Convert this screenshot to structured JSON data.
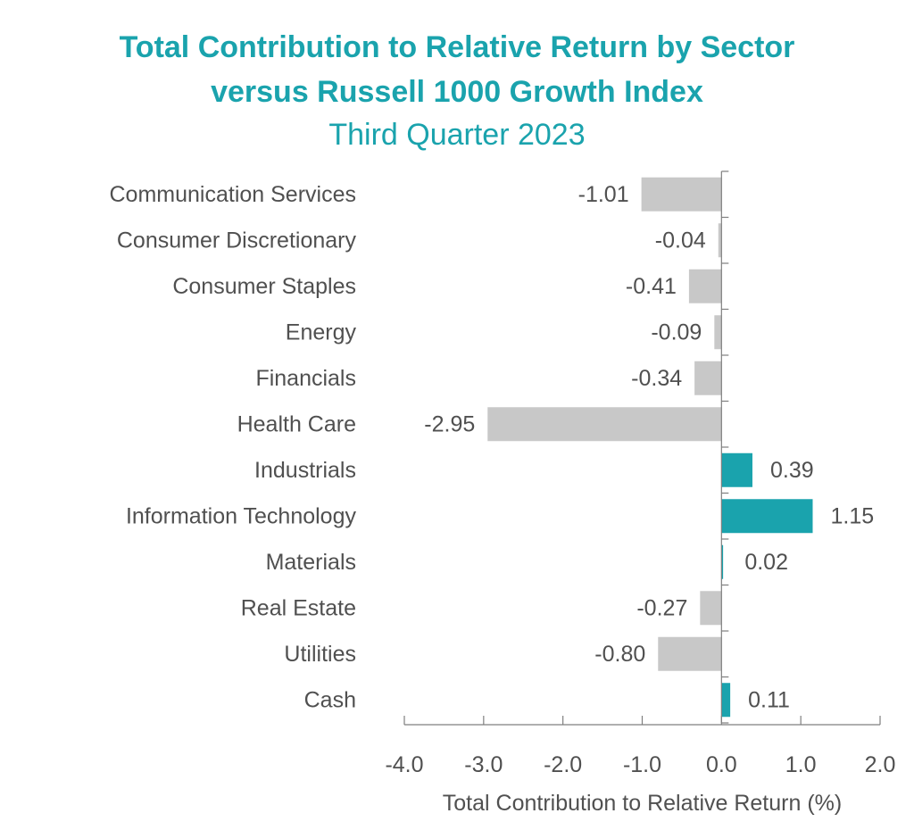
{
  "chart_data": {
    "type": "bar",
    "orientation": "horizontal",
    "title_lines": [
      "Total Contribution to Relative Return by Sector",
      "versus Russell 1000 Growth Index",
      "Third Quarter 2023"
    ],
    "categories": [
      "Communication Services",
      "Consumer Discretionary",
      "Consumer Staples",
      "Energy",
      "Financials",
      "Health Care",
      "Industrials",
      "Information Technology",
      "Materials",
      "Real Estate",
      "Utilities",
      "Cash"
    ],
    "values": [
      -1.01,
      -0.04,
      -0.41,
      -0.09,
      -0.34,
      -2.95,
      0.39,
      1.15,
      0.02,
      -0.27,
      -0.8,
      0.11
    ],
    "value_labels": [
      "-1.01",
      "-0.04",
      "-0.41",
      "-0.09",
      "-0.34",
      "-2.95",
      "0.39",
      "1.15",
      "0.02",
      "-0.27",
      "-0.80",
      "0.11"
    ],
    "xlabel": "Total Contribution to Relative Return (%)",
    "ylabel": "",
    "xlim": [
      -4.0,
      2.0
    ],
    "x_ticks": [
      -4.0,
      -3.0,
      -2.0,
      -1.0,
      0.0,
      1.0,
      2.0
    ],
    "x_tick_labels": [
      "-4.0",
      "-3.0",
      "-2.0",
      "-1.0",
      "0.0",
      "1.0",
      "2.0"
    ],
    "grid": false,
    "colors": {
      "title": "#1aa3ad",
      "positive": "#1aa3ad",
      "negative": "#c8c8c8",
      "text": "#505050",
      "axis": "#7f7f7f"
    }
  }
}
